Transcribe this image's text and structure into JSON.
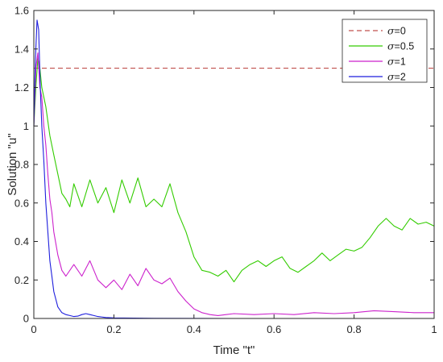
{
  "chart_data": {
    "type": "line",
    "xlabel": "Time \"t\"",
    "ylabel": "Solution \"u\"",
    "xlim": [
      0,
      1
    ],
    "ylim": [
      0,
      1.6
    ],
    "xticks": [
      0,
      0.2,
      0.4,
      0.6,
      0.8,
      1
    ],
    "xtick_labels": [
      "0",
      "0.2",
      "0.4",
      "0.6",
      "0.8",
      "1"
    ],
    "yticks": [
      0,
      0.2,
      0.4,
      0.6,
      0.8,
      1,
      1.2,
      1.4,
      1.6
    ],
    "ytick_labels": [
      "0",
      "0.2",
      "0.4",
      "0.6",
      "0.8",
      "1",
      "1.2",
      "1.4",
      "1.6"
    ],
    "grid": false,
    "legend_position": "top-right",
    "series": [
      {
        "name": "σ=0",
        "symbol": "σ",
        "value_label": "=0",
        "color": "#c0504d",
        "dash": "dashed",
        "x": [
          0,
          1
        ],
        "y": [
          1.3,
          1.3
        ]
      },
      {
        "name": "σ=0.5",
        "symbol": "σ",
        "value_label": "=0.5",
        "color": "#33cc00",
        "dash": "solid",
        "x": [
          0,
          0.005,
          0.01,
          0.015,
          0.02,
          0.025,
          0.03,
          0.04,
          0.05,
          0.06,
          0.07,
          0.08,
          0.09,
          0.1,
          0.12,
          0.14,
          0.16,
          0.18,
          0.2,
          0.22,
          0.24,
          0.26,
          0.28,
          0.3,
          0.32,
          0.34,
          0.36,
          0.38,
          0.4,
          0.42,
          0.44,
          0.46,
          0.48,
          0.5,
          0.52,
          0.54,
          0.56,
          0.58,
          0.6,
          0.62,
          0.64,
          0.66,
          0.68,
          0.7,
          0.72,
          0.74,
          0.76,
          0.78,
          0.8,
          0.82,
          0.84,
          0.86,
          0.88,
          0.9,
          0.92,
          0.94,
          0.96,
          0.98,
          1.0
        ],
        "y": [
          1.0,
          1.2,
          1.35,
          1.3,
          1.2,
          1.15,
          1.1,
          0.95,
          0.85,
          0.75,
          0.65,
          0.62,
          0.58,
          0.7,
          0.58,
          0.72,
          0.6,
          0.68,
          0.55,
          0.72,
          0.6,
          0.73,
          0.58,
          0.62,
          0.58,
          0.7,
          0.55,
          0.45,
          0.32,
          0.25,
          0.24,
          0.22,
          0.25,
          0.19,
          0.25,
          0.28,
          0.3,
          0.27,
          0.3,
          0.32,
          0.26,
          0.24,
          0.27,
          0.3,
          0.34,
          0.3,
          0.33,
          0.36,
          0.35,
          0.37,
          0.42,
          0.48,
          0.52,
          0.48,
          0.46,
          0.52,
          0.49,
          0.5,
          0.48
        ]
      },
      {
        "name": "σ=1",
        "symbol": "σ",
        "value_label": "=1",
        "color": "#cc22cc",
        "dash": "solid",
        "x": [
          0,
          0.005,
          0.01,
          0.015,
          0.02,
          0.025,
          0.03,
          0.035,
          0.04,
          0.045,
          0.05,
          0.06,
          0.07,
          0.08,
          0.1,
          0.12,
          0.14,
          0.16,
          0.18,
          0.2,
          0.22,
          0.24,
          0.26,
          0.28,
          0.3,
          0.32,
          0.34,
          0.36,
          0.38,
          0.4,
          0.42,
          0.44,
          0.46,
          0.48,
          0.5,
          0.55,
          0.6,
          0.65,
          0.7,
          0.75,
          0.8,
          0.85,
          0.9,
          0.95,
          1.0
        ],
        "y": [
          1.0,
          1.3,
          1.38,
          1.2,
          1.15,
          1.0,
          0.9,
          0.75,
          0.62,
          0.55,
          0.45,
          0.33,
          0.25,
          0.22,
          0.28,
          0.22,
          0.3,
          0.2,
          0.16,
          0.2,
          0.15,
          0.23,
          0.17,
          0.26,
          0.2,
          0.18,
          0.21,
          0.14,
          0.09,
          0.05,
          0.03,
          0.02,
          0.015,
          0.02,
          0.025,
          0.02,
          0.025,
          0.02,
          0.03,
          0.025,
          0.03,
          0.04,
          0.035,
          0.03,
          0.03
        ]
      },
      {
        "name": "σ=2",
        "symbol": "σ",
        "value_label": "=2",
        "color": "#1f1fdd",
        "dash": "solid",
        "x": [
          0,
          0.004,
          0.008,
          0.012,
          0.016,
          0.02,
          0.025,
          0.03,
          0.035,
          0.04,
          0.045,
          0.05,
          0.055,
          0.06,
          0.07,
          0.08,
          0.09,
          0.1,
          0.11,
          0.12,
          0.13,
          0.14,
          0.15,
          0.16,
          0.18,
          0.2,
          0.3,
          0.5,
          1.0
        ],
        "y": [
          1.0,
          1.35,
          1.55,
          1.5,
          1.2,
          1.0,
          0.82,
          0.6,
          0.45,
          0.3,
          0.22,
          0.14,
          0.1,
          0.06,
          0.03,
          0.02,
          0.015,
          0.01,
          0.012,
          0.02,
          0.025,
          0.02,
          0.015,
          0.01,
          0.005,
          0.003,
          0.001,
          0.0,
          0.0
        ]
      }
    ]
  }
}
